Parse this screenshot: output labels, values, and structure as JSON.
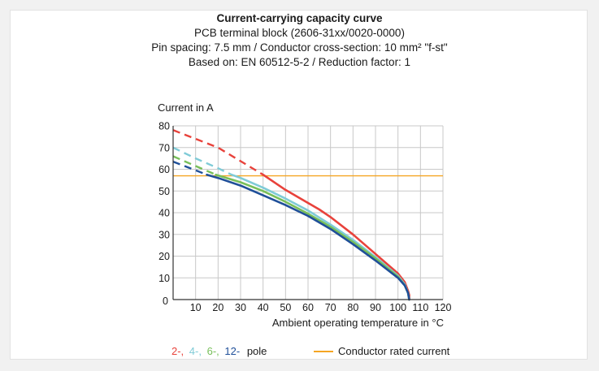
{
  "chart_data": {
    "type": "line",
    "title": "Current-carrying capacity curve",
    "subtitle": [
      "PCB terminal block (2606-31xx/0020-0000)",
      "Pin spacing: 7.5 mm / Conductor cross-section: 10 mm² \"f-st\"",
      "Based on: EN 60512-5-2 / Reduction factor: 1"
    ],
    "xlabel": "Ambient operating temperature in °C",
    "ylabel": "Current in A",
    "xlim": [
      0,
      120
    ],
    "ylim": [
      0,
      80
    ],
    "xticks": [
      "0",
      "10",
      "20",
      "30",
      "40",
      "50",
      "60",
      "70",
      "80",
      "90",
      "100",
      "110",
      "120"
    ],
    "yticks": [
      "0",
      "10",
      "20",
      "30",
      "40",
      "50",
      "60",
      "70",
      "80"
    ],
    "grid": true,
    "legend_placement": "bottom",
    "series": [
      {
        "name": "2-",
        "color": "#e8423b",
        "dashed_x": [
          0,
          20,
          40
        ],
        "dashed_y": [
          78,
          70,
          57.5
        ],
        "solid_x": [
          40,
          50,
          60,
          65,
          70,
          80,
          90,
          100,
          103,
          104.5,
          105,
          105
        ],
        "solid_y": [
          57.5,
          50.5,
          44.5,
          41.5,
          38,
          30,
          21,
          12,
          8,
          4,
          2,
          0
        ]
      },
      {
        "name": "4-",
        "color": "#7fcbd7",
        "dashed_x": [
          0,
          10,
          20,
          26
        ],
        "dashed_y": [
          70,
          65,
          60.5,
          57.5
        ],
        "solid_x": [
          26,
          30,
          40,
          50,
          60,
          70,
          80,
          90,
          100,
          103,
          104.5,
          105
        ],
        "solid_y": [
          57.5,
          56,
          51.5,
          46.5,
          41,
          34.5,
          27.5,
          19.5,
          11,
          7,
          3,
          0
        ]
      },
      {
        "name": "6-",
        "color": "#78bf5a",
        "dashed_x": [
          0,
          10,
          19
        ],
        "dashed_y": [
          66,
          61.5,
          57.5
        ],
        "solid_x": [
          19,
          30,
          40,
          50,
          60,
          70,
          80,
          90,
          100,
          103,
          104.5,
          105
        ],
        "solid_y": [
          57.5,
          54,
          50,
          45,
          39.5,
          33.5,
          26.5,
          19,
          10.5,
          6.5,
          3,
          0
        ]
      },
      {
        "name": "12-",
        "color": "#1f4f99",
        "dashed_x": [
          0,
          10,
          15
        ],
        "dashed_y": [
          63.5,
          59.5,
          57.5
        ],
        "solid_x": [
          15,
          20,
          30,
          40,
          50,
          60,
          70,
          80,
          90,
          100,
          103,
          104.5,
          105
        ],
        "solid_y": [
          57.5,
          56,
          52.5,
          48,
          43.5,
          38.5,
          32.5,
          25.5,
          18,
          10,
          6.5,
          3,
          0
        ]
      }
    ],
    "reference_line": {
      "name": "Conductor rated current",
      "color": "#f5a623",
      "y": 57
    },
    "legend": {
      "pole_labels": [
        {
          "text": "2-,",
          "color": "#e8423b"
        },
        {
          "text": "4-,",
          "color": "#7fcbd7"
        },
        {
          "text": "6-,",
          "color": "#78bf5a"
        },
        {
          "text": "12-",
          "color": "#1f4f99"
        }
      ],
      "pole_suffix": "pole",
      "rated_label": "Conductor rated current"
    }
  }
}
